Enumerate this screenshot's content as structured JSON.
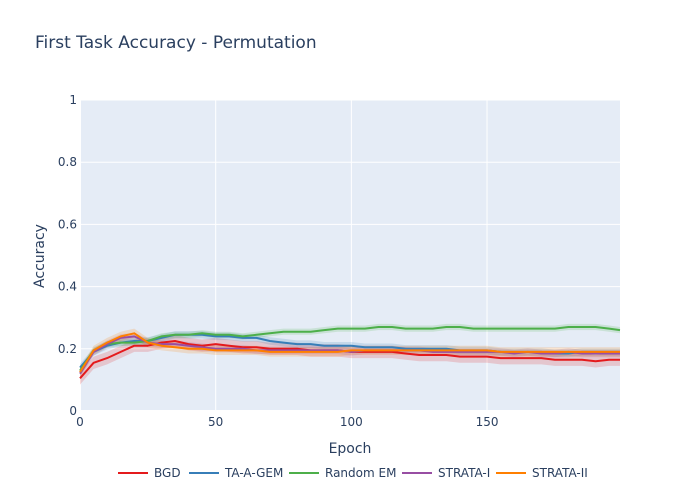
{
  "chart_data": {
    "type": "line",
    "title": "First Task Accuracy - Permutation",
    "xlabel": "Epoch",
    "ylabel": "Accuracy",
    "xlim": [
      0,
      199
    ],
    "ylim": [
      0,
      1
    ],
    "xticks": [
      0,
      50,
      100,
      150
    ],
    "yticks": [
      0,
      0.2,
      0.4,
      0.6,
      0.8,
      1
    ],
    "ytick_labels": [
      "0",
      "0.2",
      "0.4",
      "0.6",
      "0.8",
      "1"
    ],
    "grid": true,
    "legend_position": "bottom",
    "x": [
      0,
      5,
      10,
      15,
      20,
      25,
      30,
      35,
      40,
      45,
      50,
      55,
      60,
      65,
      70,
      75,
      80,
      85,
      90,
      95,
      100,
      105,
      110,
      115,
      120,
      125,
      130,
      135,
      140,
      145,
      150,
      155,
      160,
      165,
      170,
      175,
      180,
      185,
      190,
      195,
      199
    ],
    "series": [
      {
        "name": "BGD",
        "color": "#e41a1c",
        "values": [
          0.105,
          0.155,
          0.17,
          0.19,
          0.21,
          0.21,
          0.22,
          0.225,
          0.215,
          0.21,
          0.215,
          0.21,
          0.205,
          0.205,
          0.2,
          0.2,
          0.2,
          0.195,
          0.195,
          0.195,
          0.19,
          0.19,
          0.19,
          0.19,
          0.185,
          0.18,
          0.18,
          0.18,
          0.175,
          0.175,
          0.175,
          0.17,
          0.17,
          0.17,
          0.17,
          0.165,
          0.165,
          0.165,
          0.16,
          0.165,
          0.165
        ],
        "band": 0.02
      },
      {
        "name": "TA-A-GEM",
        "color": "#377eb8",
        "values": [
          0.14,
          0.19,
          0.21,
          0.22,
          0.225,
          0.225,
          0.235,
          0.245,
          0.245,
          0.245,
          0.24,
          0.24,
          0.235,
          0.235,
          0.225,
          0.22,
          0.215,
          0.215,
          0.21,
          0.21,
          0.21,
          0.205,
          0.205,
          0.205,
          0.2,
          0.2,
          0.2,
          0.2,
          0.195,
          0.195,
          0.195,
          0.19,
          0.19,
          0.19,
          0.19,
          0.185,
          0.185,
          0.19,
          0.19,
          0.19,
          0.19
        ],
        "band": 0.012
      },
      {
        "name": "Random EM",
        "color": "#4daf4a",
        "values": [
          0.13,
          0.195,
          0.215,
          0.22,
          0.22,
          0.225,
          0.24,
          0.245,
          0.245,
          0.25,
          0.245,
          0.245,
          0.24,
          0.245,
          0.25,
          0.255,
          0.255,
          0.255,
          0.26,
          0.265,
          0.265,
          0.265,
          0.27,
          0.27,
          0.265,
          0.265,
          0.265,
          0.27,
          0.27,
          0.265,
          0.265,
          0.265,
          0.265,
          0.265,
          0.265,
          0.265,
          0.27,
          0.27,
          0.27,
          0.265,
          0.26
        ],
        "band": 0.01
      },
      {
        "name": "STRATA-I",
        "color": "#984ea3",
        "values": [
          0.12,
          0.19,
          0.215,
          0.235,
          0.24,
          0.22,
          0.215,
          0.215,
          0.21,
          0.205,
          0.2,
          0.2,
          0.2,
          0.195,
          0.195,
          0.195,
          0.195,
          0.195,
          0.195,
          0.195,
          0.19,
          0.195,
          0.195,
          0.195,
          0.195,
          0.195,
          0.19,
          0.19,
          0.19,
          0.19,
          0.19,
          0.19,
          0.185,
          0.19,
          0.185,
          0.185,
          0.19,
          0.185,
          0.185,
          0.185,
          0.185
        ],
        "band": 0.012
      },
      {
        "name": "STRATA-II",
        "color": "#ff7f00",
        "values": [
          0.125,
          0.195,
          0.22,
          0.24,
          0.25,
          0.22,
          0.21,
          0.205,
          0.2,
          0.2,
          0.195,
          0.195,
          0.195,
          0.195,
          0.19,
          0.19,
          0.19,
          0.19,
          0.19,
          0.19,
          0.195,
          0.195,
          0.195,
          0.195,
          0.195,
          0.195,
          0.195,
          0.195,
          0.195,
          0.195,
          0.195,
          0.19,
          0.19,
          0.19,
          0.19,
          0.19,
          0.19,
          0.19,
          0.19,
          0.19,
          0.19
        ],
        "band": 0.015
      }
    ]
  }
}
